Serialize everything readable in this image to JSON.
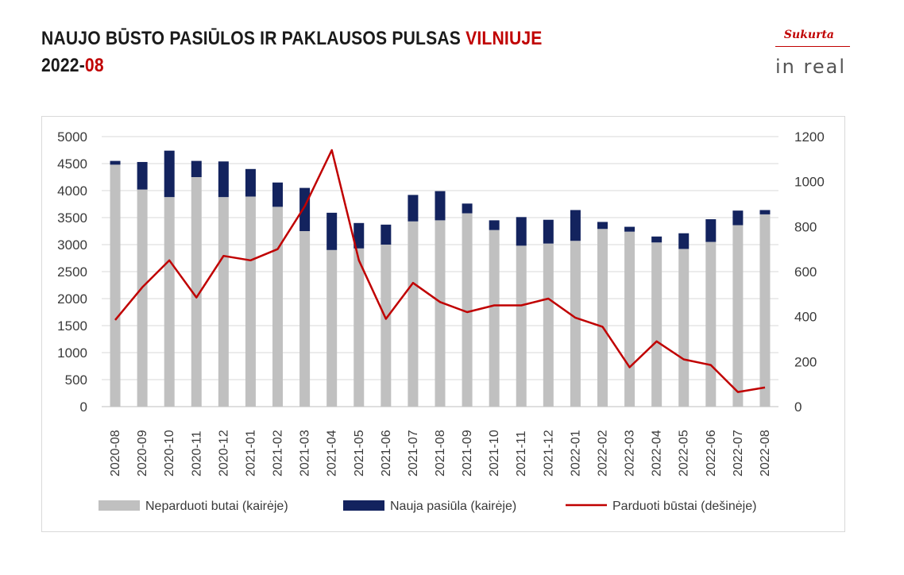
{
  "title": {
    "line1_main": "NAUJO BŪSTO PASIŪLOS IR PAKLAUSOS PULSAS ",
    "line1_accent": "VILNIUJE",
    "line2_main": "2022-",
    "line2_accent": "08"
  },
  "logo": {
    "sukurta": "Sukurta",
    "brand": "in real"
  },
  "colors": {
    "unsold": "#c0c0c0",
    "new_supply": "#13235e",
    "sold": "#c00000",
    "accent": "#c00000"
  },
  "chart_data": {
    "type": "bar",
    "stacked": true,
    "categories": [
      "2020-08",
      "2020-09",
      "2020-10",
      "2020-11",
      "2020-12",
      "2021-01",
      "2021-02",
      "2021-03",
      "2021-04",
      "2021-05",
      "2021-06",
      "2021-07",
      "2021-08",
      "2021-09",
      "2021-10",
      "2021-11",
      "2021-12",
      "2022-01",
      "2022-02",
      "2022-03",
      "2022-04",
      "2022-05",
      "2022-06",
      "2022-07",
      "2022-08"
    ],
    "series": [
      {
        "name": "Neparduoti butai (kairėje)",
        "type": "bar",
        "axis": "left",
        "values": [
          4480,
          4020,
          3880,
          4250,
          3880,
          3890,
          3700,
          3250,
          2900,
          2930,
          3000,
          3430,
          3450,
          3580,
          3270,
          2980,
          3020,
          3070,
          3290,
          3240,
          3040,
          2920,
          3050,
          3360,
          3560
        ]
      },
      {
        "name": "Nauja pasiūla (kairėje)",
        "type": "bar",
        "axis": "left",
        "values": [
          70,
          510,
          860,
          300,
          660,
          510,
          450,
          800,
          690,
          470,
          370,
          490,
          540,
          180,
          180,
          530,
          440,
          570,
          130,
          90,
          110,
          290,
          420,
          270,
          80
        ]
      },
      {
        "name": "Parduoti būstai (dešinėje)",
        "type": "line",
        "axis": "right",
        "values": [
          385,
          530,
          650,
          485,
          670,
          650,
          700,
          890,
          1140,
          650,
          390,
          550,
          465,
          420,
          450,
          450,
          480,
          395,
          355,
          175,
          290,
          210,
          185,
          65,
          85
        ]
      }
    ],
    "ylim_left": [
      0,
      5000
    ],
    "yticks_left": [
      0,
      500,
      1000,
      1500,
      2000,
      2500,
      3000,
      3500,
      4000,
      4500,
      5000
    ],
    "ylim_right": [
      0,
      1200
    ],
    "yticks_right": [
      0,
      200,
      400,
      600,
      800,
      1000,
      1200
    ],
    "grid": true,
    "legend_position": "bottom"
  }
}
